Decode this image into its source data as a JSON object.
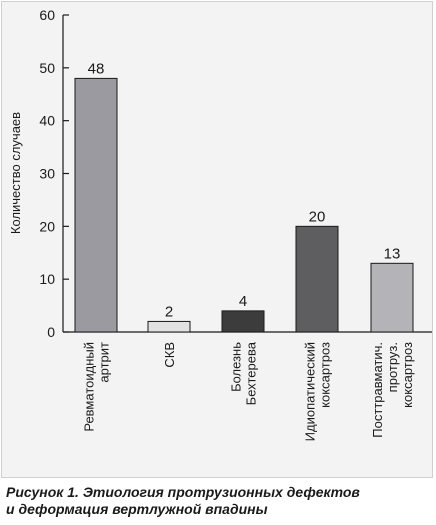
{
  "chart_data": {
    "type": "bar",
    "categories": [
      [
        "Ревматоидный",
        "артрит"
      ],
      [
        "СКВ"
      ],
      [
        "Болезнь",
        "Бехтерева"
      ],
      [
        "Идиопатический",
        "коксартроз"
      ],
      [
        "Посттравматич.",
        "протруз.",
        "коксартроз"
      ]
    ],
    "values": [
      48,
      2,
      4,
      20,
      13
    ],
    "value_labels": [
      "48",
      "2",
      "4",
      "20",
      "13"
    ],
    "bar_colors": [
      "#9a9aa0",
      "#e2e2e2",
      "#3c3c3c",
      "#5e5e60",
      "#b4b4b8"
    ],
    "ylabel": "Количество случаев",
    "xlabel": "",
    "ylim": [
      0,
      60
    ],
    "yticks": [
      "0",
      "10",
      "20",
      "30",
      "40",
      "50",
      "60"
    ],
    "grid": false,
    "legend": "none"
  },
  "caption": {
    "line1": "Рисунок 1. Этиология протрузионных дефектов",
    "line2": "и деформация вертлужной впадины"
  }
}
